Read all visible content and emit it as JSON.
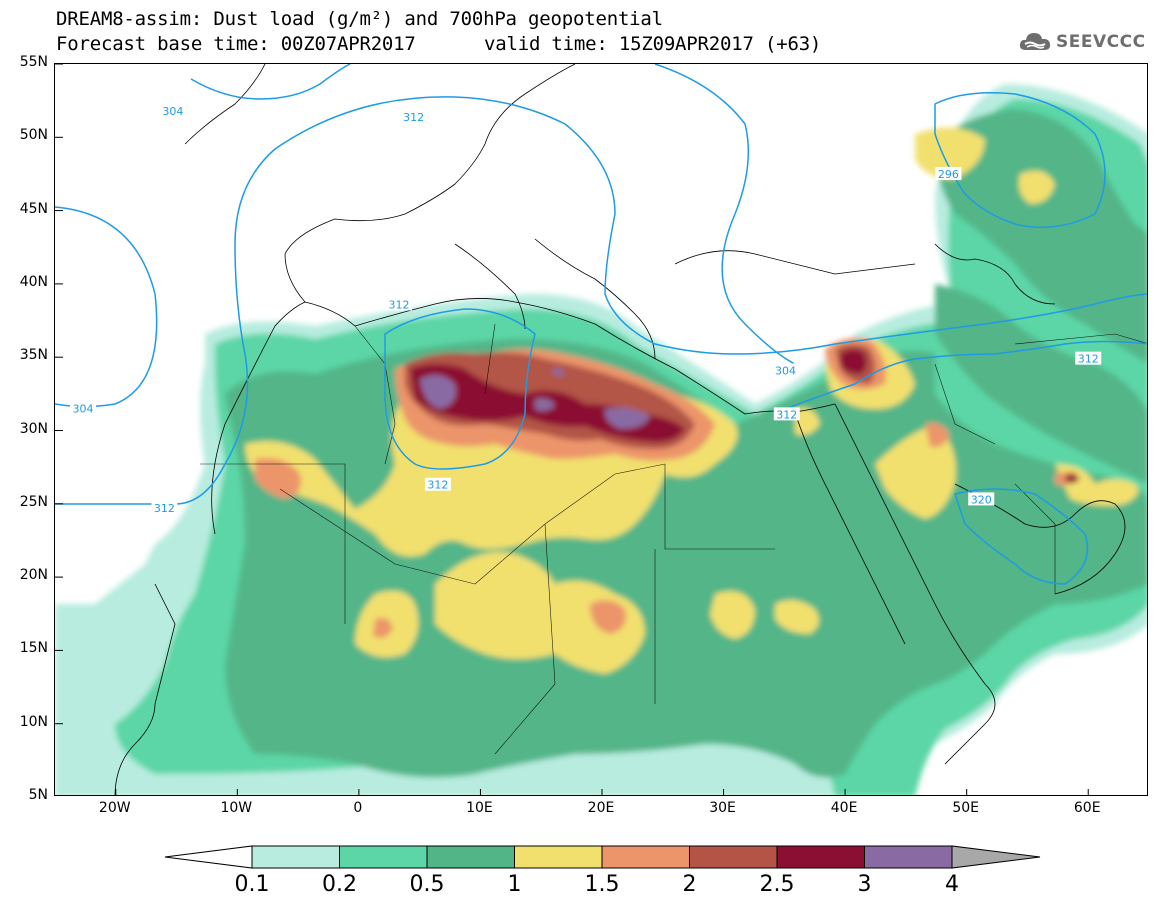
{
  "title": {
    "line1": "DREAM8-assim: Dust load (g/m²) and 700hPa geopotential",
    "line2_base": "Forecast base time: 00Z07APR2017",
    "line2_valid": "valid time: 15Z09APR2017 (+63)"
  },
  "logo": {
    "text": "SEEVCCC",
    "icon": "cloud-icon"
  },
  "chart_data": {
    "type": "heatmap",
    "title": "DREAM8-assim: Dust load (g/m²) and 700hPa geopotential",
    "x_range": [
      -25,
      65
    ],
    "y_range": [
      5,
      55
    ],
    "x_ticks": [
      "20W",
      "10W",
      "0",
      "10E",
      "20E",
      "30E",
      "40E",
      "50E",
      "60E"
    ],
    "x_tick_values": [
      -20,
      -10,
      0,
      10,
      20,
      30,
      40,
      50,
      60
    ],
    "y_ticks": [
      "55N",
      "50N",
      "45N",
      "40N",
      "35N",
      "30N",
      "25N",
      "20N",
      "15N",
      "10N",
      "5N"
    ],
    "y_tick_values": [
      55,
      50,
      45,
      40,
      35,
      30,
      25,
      20,
      15,
      10,
      5
    ],
    "colorbar": {
      "levels": [
        "0.1",
        "0.2",
        "0.5",
        "1",
        "1.5",
        "2",
        "2.5",
        "3",
        "4"
      ],
      "colors": [
        "#ffffff",
        "#b7ecdf",
        "#5cd6a6",
        "#52b588",
        "#f2e06e",
        "#ec956b",
        "#b35447",
        "#8b0f33",
        "#8a6aa3",
        "#a8a8a8"
      ]
    },
    "contour_labels": [
      {
        "value": "304",
        "lon": -15.3,
        "lat": 51.8
      },
      {
        "value": "312",
        "lon": 4.5,
        "lat": 51.4
      },
      {
        "value": "304",
        "lon": -22.7,
        "lat": 31.5
      },
      {
        "value": "312",
        "lon": -16,
        "lat": 24.7
      },
      {
        "value": "312",
        "lon": 6.5,
        "lat": 26.3
      },
      {
        "value": "312",
        "lon": 3.3,
        "lat": 38.6
      },
      {
        "value": "304",
        "lon": 35.1,
        "lat": 34.1
      },
      {
        "value": "312",
        "lon": 35.2,
        "lat": 31.1
      },
      {
        "value": "312",
        "lon": 60,
        "lat": 34.9
      },
      {
        "value": "296",
        "lon": 48.5,
        "lat": 47.5
      },
      {
        "value": "320",
        "lon": 51.2,
        "lat": 25.3
      }
    ]
  }
}
